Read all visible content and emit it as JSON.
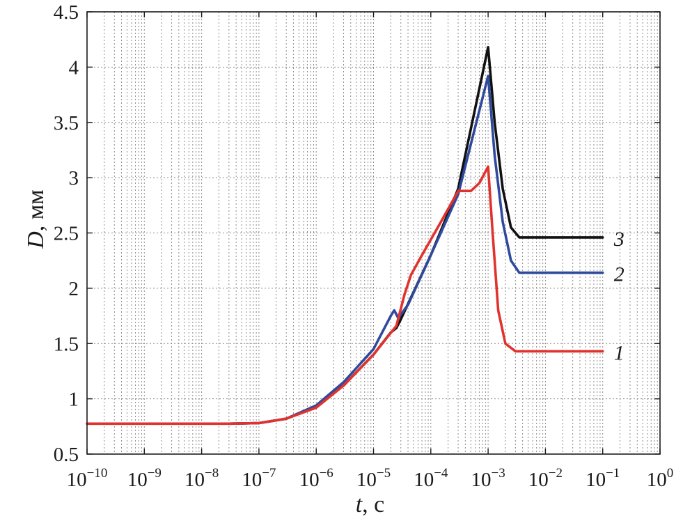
{
  "chart_data": {
    "type": "line",
    "title": "",
    "xscale": "log",
    "xlim": [
      1e-10,
      1
    ],
    "ylim": [
      0.5,
      4.5
    ],
    "grid": true,
    "xlabel": {
      "var": "t",
      "unit": ", c"
    },
    "ylabel": {
      "var": "D",
      "unit": ", мм"
    },
    "xticks": [
      {
        "base": "10",
        "exp": "−10"
      },
      {
        "base": "10",
        "exp": "−9"
      },
      {
        "base": "10",
        "exp": "−8"
      },
      {
        "base": "10",
        "exp": "−7"
      },
      {
        "base": "10",
        "exp": "−6"
      },
      {
        "base": "10",
        "exp": "−5"
      },
      {
        "base": "10",
        "exp": "−4"
      },
      {
        "base": "10",
        "exp": "−3"
      },
      {
        "base": "10",
        "exp": "−2"
      },
      {
        "base": "10",
        "exp": "−1"
      },
      {
        "base": "10",
        "exp": "0"
      }
    ],
    "yticks": [
      "0.5",
      "1",
      "1.5",
      "2",
      "2.5",
      "3",
      "3.5",
      "4",
      "4.5"
    ],
    "series": [
      {
        "name": "3",
        "color": "#111111",
        "points": [
          [
            3e-08,
            0.775
          ],
          [
            1e-07,
            0.78
          ],
          [
            3e-07,
            0.82
          ],
          [
            1e-06,
            0.93
          ],
          [
            3e-06,
            1.12
          ],
          [
            1e-05,
            1.4
          ],
          [
            2e-05,
            1.6
          ],
          [
            2.5e-05,
            1.64
          ],
          [
            3e-05,
            1.72
          ],
          [
            0.0001,
            2.3
          ],
          [
            0.0003,
            2.9
          ],
          [
            0.001,
            4.18
          ],
          [
            0.0013,
            3.5
          ],
          [
            0.0018,
            2.9
          ],
          [
            0.0025,
            2.55
          ],
          [
            0.0035,
            2.46
          ],
          [
            0.01,
            2.46
          ],
          [
            0.1,
            2.46
          ]
        ]
      },
      {
        "name": "2",
        "color": "#2f4a9c",
        "points": [
          [
            3e-08,
            0.775
          ],
          [
            1e-07,
            0.78
          ],
          [
            3e-07,
            0.82
          ],
          [
            1e-06,
            0.94
          ],
          [
            3e-06,
            1.15
          ],
          [
            1e-05,
            1.45
          ],
          [
            2e-05,
            1.75
          ],
          [
            2.3e-05,
            1.8
          ],
          [
            2.7e-05,
            1.73
          ],
          [
            4e-05,
            1.85
          ],
          [
            0.0001,
            2.3
          ],
          [
            0.0003,
            2.85
          ],
          [
            0.001,
            3.92
          ],
          [
            0.0013,
            3.2
          ],
          [
            0.0018,
            2.6
          ],
          [
            0.0025,
            2.25
          ],
          [
            0.0035,
            2.14
          ],
          [
            0.01,
            2.14
          ],
          [
            0.1,
            2.14
          ]
        ]
      },
      {
        "name": "1",
        "color": "#e0322e",
        "points": [
          [
            1e-10,
            0.775
          ],
          [
            3e-08,
            0.775
          ],
          [
            1e-07,
            0.78
          ],
          [
            3e-07,
            0.82
          ],
          [
            1e-06,
            0.92
          ],
          [
            3e-06,
            1.12
          ],
          [
            1e-05,
            1.4
          ],
          [
            2.5e-05,
            1.66
          ],
          [
            3.5e-05,
            1.95
          ],
          [
            4.5e-05,
            2.12
          ],
          [
            7e-05,
            2.3
          ],
          [
            0.00015,
            2.6
          ],
          [
            0.0003,
            2.88
          ],
          [
            0.0005,
            2.88
          ],
          [
            0.0007,
            2.95
          ],
          [
            0.001,
            3.1
          ],
          [
            0.0012,
            2.5
          ],
          [
            0.0015,
            1.8
          ],
          [
            0.002,
            1.5
          ],
          [
            0.003,
            1.43
          ],
          [
            0.01,
            1.43
          ],
          [
            0.1,
            1.43
          ]
        ]
      }
    ],
    "series_label_y": {
      "3": 2.46,
      "2": 2.14,
      "1": 1.43
    }
  }
}
